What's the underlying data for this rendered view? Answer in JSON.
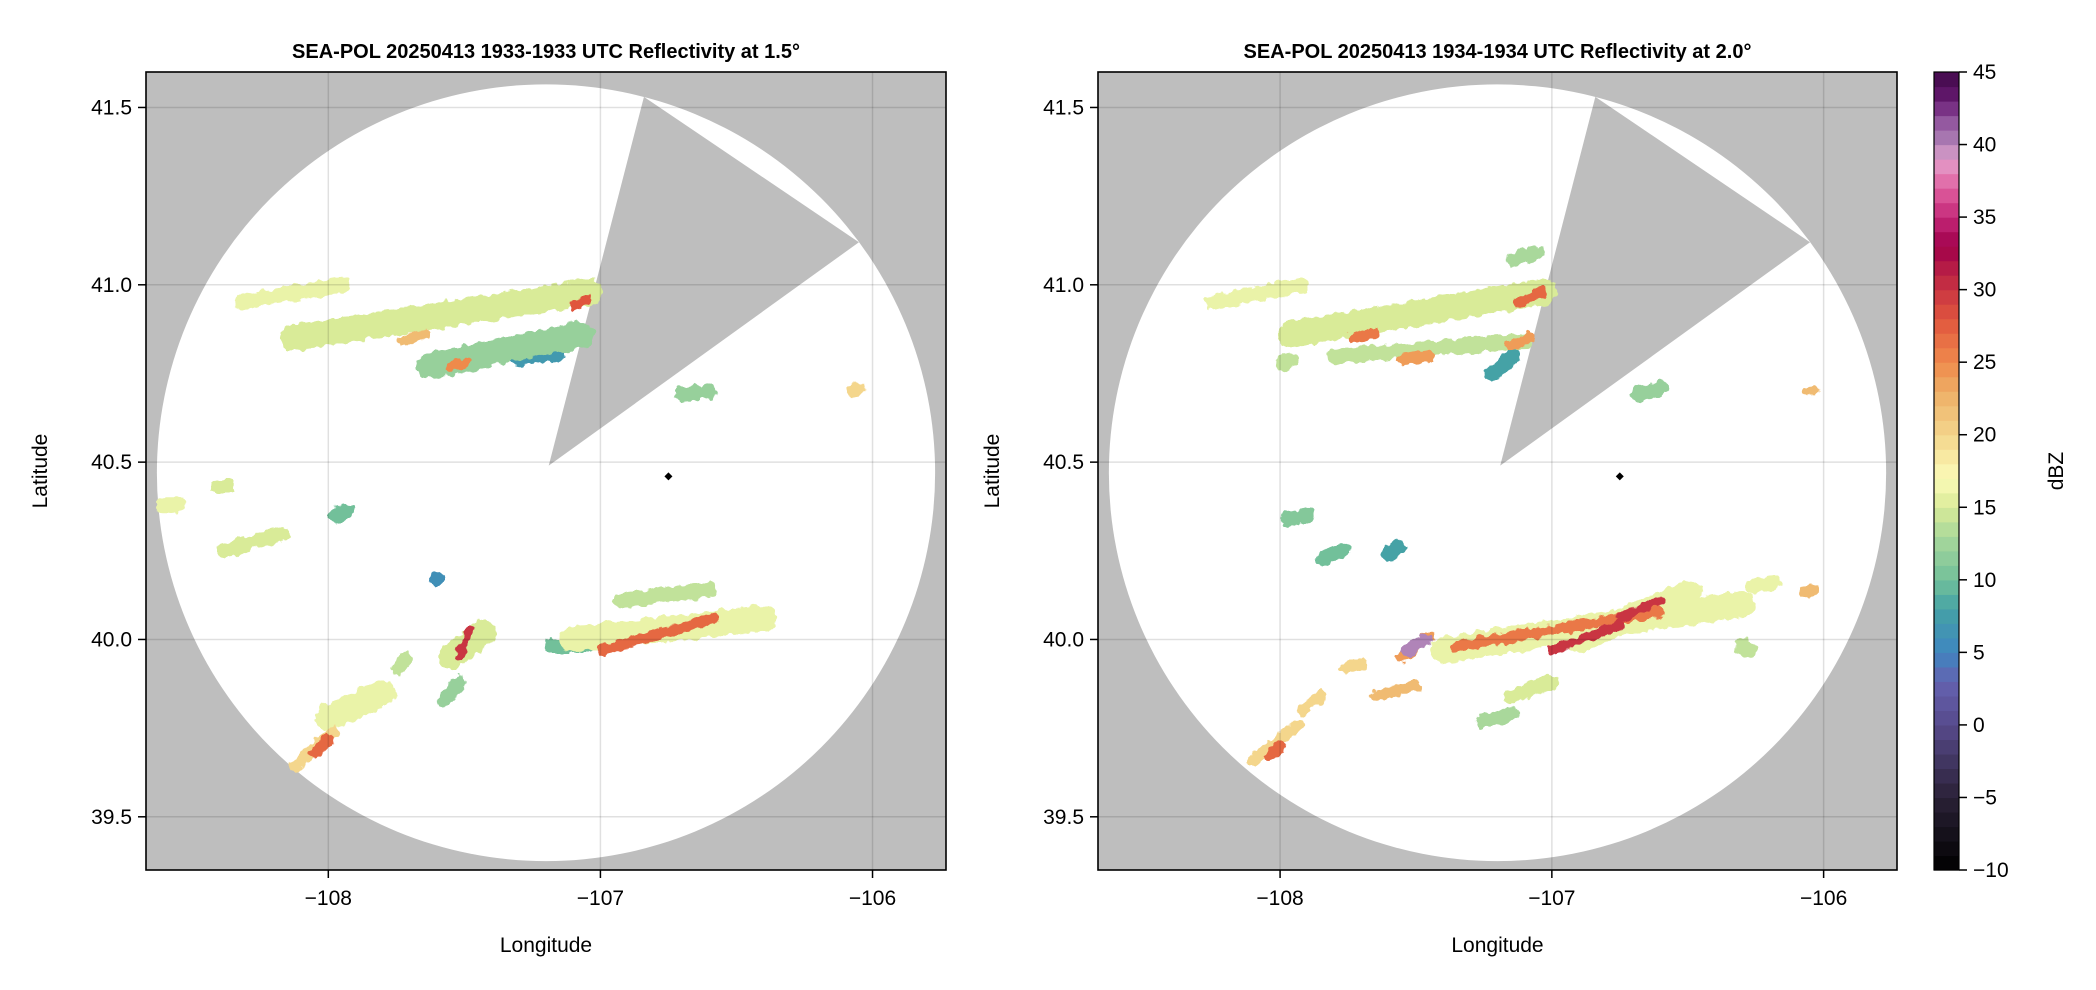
{
  "colorbar": {
    "label": "dBZ",
    "range": [
      -10,
      45
    ],
    "ticks": [
      45,
      40,
      35,
      30,
      25,
      20,
      15,
      10,
      5,
      0,
      -5,
      -10
    ],
    "tick_labels": [
      "45",
      "40",
      "35",
      "30",
      "25",
      "20",
      "15",
      "10",
      "5",
      "0",
      "−5",
      "−10"
    ],
    "color_stops": [
      [
        -10,
        "#000000"
      ],
      [
        -5,
        "#2a2136"
      ],
      [
        0,
        "#574a8c"
      ],
      [
        3,
        "#6462b0"
      ],
      [
        5,
        "#3f86c0"
      ],
      [
        8,
        "#45a2a6"
      ],
      [
        10,
        "#72c09a"
      ],
      [
        13,
        "#a9d89b"
      ],
      [
        15,
        "#d9eb98"
      ],
      [
        17,
        "#fbfbb8"
      ],
      [
        20,
        "#f4d68c"
      ],
      [
        23,
        "#eeae65"
      ],
      [
        25,
        "#ef8a4c"
      ],
      [
        28,
        "#e0553e"
      ],
      [
        30,
        "#c93542"
      ],
      [
        33,
        "#a0004a"
      ],
      [
        35,
        "#c42878"
      ],
      [
        37,
        "#e060a0"
      ],
      [
        39,
        "#e4a0cc"
      ],
      [
        40,
        "#b084b8"
      ],
      [
        42,
        "#8a4a98"
      ],
      [
        43,
        "#681a72"
      ],
      [
        45,
        "#400848"
      ]
    ]
  },
  "colors": {
    "blocked": "#bebebe",
    "coverage": "#ffffff",
    "grid": "#000000",
    "marker": "#000000"
  },
  "chart_data": [
    {
      "type": "heatmap",
      "title": "SEA-POL 20250413 1933-1933 UTC Reflectivity at 1.5°",
      "xlabel": "Longitude",
      "ylabel": "Latitude",
      "xlim": [
        -108.67,
        -105.73
      ],
      "ylim": [
        39.35,
        41.6
      ],
      "xticks": [
        -108,
        -107,
        -106
      ],
      "xtick_labels": [
        "−108",
        "−107",
        "−106"
      ],
      "yticks": [
        39.5,
        40.0,
        40.5,
        41.0,
        41.5
      ],
      "ytick_labels": [
        "39.5",
        "40.0",
        "40.5",
        "41.0",
        "41.5"
      ],
      "grid": true,
      "radar_location": [
        -107.19,
        40.49
      ],
      "marker": [
        -106.75,
        40.46
      ],
      "blocked_sector": [
        [
          -107.19,
          40.49
        ],
        [
          -106.84,
          41.53
        ],
        [
          -106.05,
          41.12
        ]
      ],
      "echoes": [
        {
          "from": [
            -108.32,
            40.95
          ],
          "to": [
            -107.95,
            41.0
          ],
          "dbz": 16
        },
        {
          "from": [
            -108.13,
            40.85
          ],
          "to": [
            -107.04,
            40.98
          ],
          "dbz": 15
        },
        {
          "from": [
            -107.63,
            40.77
          ],
          "to": [
            -107.07,
            40.86
          ],
          "dbz": 12
        },
        {
          "from": [
            -107.3,
            40.79
          ],
          "to": [
            -107.15,
            40.81
          ],
          "dbz": 7
        },
        {
          "from": [
            -107.73,
            40.84
          ],
          "to": [
            -107.65,
            40.86
          ],
          "dbz": 22
        },
        {
          "from": [
            -107.55,
            40.77
          ],
          "to": [
            -107.5,
            40.78
          ],
          "dbz": 25
        },
        {
          "from": [
            -107.1,
            40.94
          ],
          "to": [
            -107.05,
            40.96
          ],
          "dbz": 28
        },
        {
          "from": [
            -106.7,
            40.69
          ],
          "to": [
            -106.6,
            40.7
          ],
          "dbz": 12
        },
        {
          "from": [
            -106.08,
            40.7
          ],
          "to": [
            -106.04,
            40.71
          ],
          "dbz": 20
        },
        {
          "from": [
            -108.38,
            40.25
          ],
          "to": [
            -108.17,
            40.3
          ],
          "dbz": 15
        },
        {
          "from": [
            -108.41,
            40.43
          ],
          "to": [
            -108.37,
            40.43
          ],
          "dbz": 15
        },
        {
          "from": [
            -108.61,
            40.38
          ],
          "to": [
            -108.55,
            40.38
          ],
          "dbz": 16
        },
        {
          "from": [
            -107.97,
            40.35
          ],
          "to": [
            -107.93,
            40.36
          ],
          "dbz": 10
        },
        {
          "from": [
            -107.1,
            40.0
          ],
          "to": [
            -106.4,
            40.06
          ],
          "dbz": 16
        },
        {
          "from": [
            -106.92,
            40.11
          ],
          "to": [
            -106.6,
            40.14
          ],
          "dbz": 14
        },
        {
          "from": [
            -106.99,
            39.97
          ],
          "to": [
            -106.58,
            40.06
          ],
          "dbz": 27
        },
        {
          "from": [
            -107.18,
            39.98
          ],
          "to": [
            -107.05,
            39.98
          ],
          "dbz": 10
        },
        {
          "from": [
            -107.55,
            39.95
          ],
          "to": [
            -107.43,
            40.02
          ],
          "dbz": 15
        },
        {
          "from": [
            -107.52,
            39.95
          ],
          "to": [
            -107.48,
            40.03
          ],
          "dbz": 30
        },
        {
          "from": [
            -107.57,
            39.83
          ],
          "to": [
            -107.52,
            39.88
          ],
          "dbz": 12
        },
        {
          "from": [
            -108.0,
            39.78
          ],
          "to": [
            -107.8,
            39.85
          ],
          "dbz": 16
        },
        {
          "from": [
            -108.13,
            39.64
          ],
          "to": [
            -107.98,
            39.74
          ],
          "dbz": 20
        },
        {
          "from": [
            -108.05,
            39.68
          ],
          "to": [
            -108.0,
            39.72
          ],
          "dbz": 27
        },
        {
          "from": [
            -107.74,
            39.92
          ],
          "to": [
            -107.72,
            39.95
          ],
          "dbz": 14
        },
        {
          "from": [
            -107.6,
            40.17
          ],
          "to": [
            -107.6,
            40.17
          ],
          "dbz": 6
        }
      ]
    },
    {
      "type": "heatmap",
      "title": "SEA-POL 20250413 1934-1934 UTC Reflectivity at 2.0°",
      "xlabel": "Longitude",
      "ylabel": "Latitude",
      "xlim": [
        -108.67,
        -105.73
      ],
      "ylim": [
        39.35,
        41.6
      ],
      "xticks": [
        -108,
        -107,
        -106
      ],
      "xtick_labels": [
        "−108",
        "−107",
        "−106"
      ],
      "yticks": [
        39.5,
        40.0,
        40.5,
        41.0,
        41.5
      ],
      "ytick_labels": [
        "39.5",
        "40.0",
        "40.5",
        "41.0",
        "41.5"
      ],
      "grid": true,
      "radar_location": [
        -107.19,
        40.49
      ],
      "marker": [
        -106.75,
        40.46
      ],
      "blocked_sector": [
        [
          -107.19,
          40.49
        ],
        [
          -106.84,
          41.53
        ],
        [
          -106.05,
          41.12
        ]
      ],
      "echoes": [
        {
          "from": [
            -108.25,
            40.95
          ],
          "to": [
            -107.92,
            41.0
          ],
          "dbz": 16
        },
        {
          "from": [
            -107.14,
            41.07
          ],
          "to": [
            -107.06,
            41.09
          ],
          "dbz": 13
        },
        {
          "from": [
            -107.96,
            40.86
          ],
          "to": [
            -107.03,
            40.98
          ],
          "dbz": 15
        },
        {
          "from": [
            -107.8,
            40.8
          ],
          "to": [
            -107.1,
            40.84
          ],
          "dbz": 14
        },
        {
          "from": [
            -107.22,
            40.75
          ],
          "to": [
            -107.14,
            40.8
          ],
          "dbz": 8
        },
        {
          "from": [
            -107.73,
            40.85
          ],
          "to": [
            -107.66,
            40.86
          ],
          "dbz": 26
        },
        {
          "from": [
            -107.55,
            40.79
          ],
          "to": [
            -107.45,
            40.8
          ],
          "dbz": 24
        },
        {
          "from": [
            -107.15,
            40.83
          ],
          "to": [
            -107.08,
            40.85
          ],
          "dbz": 24
        },
        {
          "from": [
            -107.12,
            40.95
          ],
          "to": [
            -107.04,
            40.98
          ],
          "dbz": 27
        },
        {
          "from": [
            -107.99,
            40.78
          ],
          "to": [
            -107.96,
            40.79
          ],
          "dbz": 14
        },
        {
          "from": [
            -106.68,
            40.69
          ],
          "to": [
            -106.6,
            40.71
          ],
          "dbz": 12
        },
        {
          "from": [
            -106.06,
            40.7
          ],
          "to": [
            -106.04,
            40.7
          ],
          "dbz": 22
        },
        {
          "from": [
            -107.97,
            40.34
          ],
          "to": [
            -107.9,
            40.35
          ],
          "dbz": 11
        },
        {
          "from": [
            -107.84,
            40.23
          ],
          "to": [
            -107.77,
            40.25
          ],
          "dbz": 10
        },
        {
          "from": [
            -107.6,
            40.24
          ],
          "to": [
            -107.56,
            40.26
          ],
          "dbz": 8
        },
        {
          "from": [
            -107.4,
            39.97
          ],
          "to": [
            -106.3,
            40.1
          ],
          "dbz": 16
        },
        {
          "from": [
            -106.9,
            40.0
          ],
          "to": [
            -106.5,
            40.13
          ],
          "dbz": 16
        },
        {
          "from": [
            -107.35,
            39.98
          ],
          "to": [
            -106.6,
            40.08
          ],
          "dbz": 26
        },
        {
          "from": [
            -107.0,
            39.97
          ],
          "to": [
            -106.75,
            40.04
          ],
          "dbz": 30
        },
        {
          "from": [
            -106.75,
            40.06
          ],
          "to": [
            -106.6,
            40.11
          ],
          "dbz": 30
        },
        {
          "from": [
            -107.55,
            39.95
          ],
          "to": [
            -107.45,
            40.01
          ],
          "dbz": 24
        },
        {
          "from": [
            -107.53,
            39.97
          ],
          "to": [
            -107.46,
            40.0
          ],
          "dbz": 40
        },
        {
          "from": [
            -106.26,
            40.15
          ],
          "to": [
            -106.18,
            40.16
          ],
          "dbz": 16
        },
        {
          "from": [
            -106.07,
            40.13
          ],
          "to": [
            -106.04,
            40.14
          ],
          "dbz": 22
        },
        {
          "from": [
            -106.3,
            39.98
          ],
          "to": [
            -106.27,
            39.97
          ],
          "dbz": 14
        },
        {
          "from": [
            -107.65,
            39.84
          ],
          "to": [
            -107.5,
            39.87
          ],
          "dbz": 22
        },
        {
          "from": [
            -107.15,
            39.84
          ],
          "to": [
            -107.0,
            39.88
          ],
          "dbz": 15
        },
        {
          "from": [
            -107.25,
            39.77
          ],
          "to": [
            -107.15,
            39.79
          ],
          "dbz": 13
        },
        {
          "from": [
            -107.76,
            39.92
          ],
          "to": [
            -107.7,
            39.93
          ],
          "dbz": 20
        },
        {
          "from": [
            -107.92,
            39.8
          ],
          "to": [
            -107.85,
            39.84
          ],
          "dbz": 20
        },
        {
          "from": [
            -108.1,
            39.66
          ],
          "to": [
            -107.93,
            39.76
          ],
          "dbz": 20
        },
        {
          "from": [
            -108.04,
            39.67
          ],
          "to": [
            -108.0,
            39.7
          ],
          "dbz": 27
        }
      ]
    }
  ]
}
